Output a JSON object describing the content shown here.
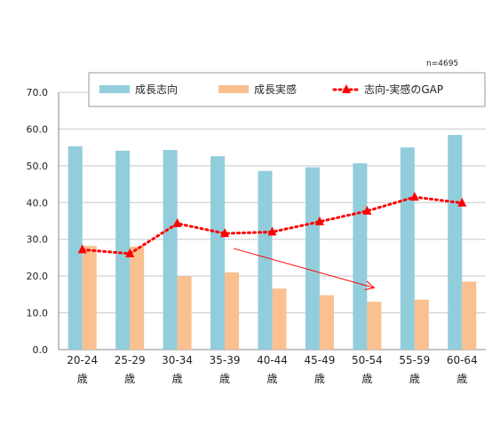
{
  "chart_data": {
    "type": "bar",
    "note": "n=4695",
    "categories": [
      "20-24歳",
      "25-29歳",
      "30-34歳",
      "35-39歳",
      "40-44歳",
      "45-49歳",
      "50-54歳",
      "55-59歳",
      "60-64歳"
    ],
    "category_lines": [
      [
        "20-24",
        "歳"
      ],
      [
        "25-29",
        "歳"
      ],
      [
        "30-34",
        "歳"
      ],
      [
        "35-39",
        "歳"
      ],
      [
        "40-44",
        "歳"
      ],
      [
        "45-49",
        "歳"
      ],
      [
        "50-54",
        "歳"
      ],
      [
        "55-59",
        "歳"
      ],
      [
        "60-64",
        "歳"
      ]
    ],
    "series": [
      {
        "name": "成長志向",
        "kind": "bar",
        "color": "#92CDDC",
        "values": [
          55.3,
          54.1,
          54.3,
          52.6,
          48.6,
          49.6,
          50.7,
          55.0,
          58.4
        ]
      },
      {
        "name": "成長実感",
        "kind": "bar",
        "color": "#FAC090",
        "values": [
          28.2,
          28.0,
          19.9,
          21.0,
          16.6,
          14.8,
          13.0,
          13.6,
          18.5
        ]
      },
      {
        "name": "志向-実感のGAP",
        "kind": "line",
        "color": "#FF0000",
        "line_style": "dotted",
        "marker": "triangle",
        "values": [
          27.2,
          26.1,
          34.3,
          31.6,
          32.0,
          34.8,
          37.7,
          41.5,
          39.9
        ]
      }
    ],
    "ylim": [
      0,
      70
    ],
    "yticks": [
      "0.0",
      "10.0",
      "20.0",
      "30.0",
      "40.0",
      "50.0",
      "60.0",
      "70.0"
    ],
    "grid": true,
    "legend_position": "top",
    "annotation": {
      "type": "arrow",
      "color": "#FF0000",
      "from": [
        "35-39歳",
        27.5
      ],
      "to": [
        "50-54歳",
        16.8
      ]
    },
    "xlabel": "",
    "ylabel": "",
    "title": ""
  }
}
